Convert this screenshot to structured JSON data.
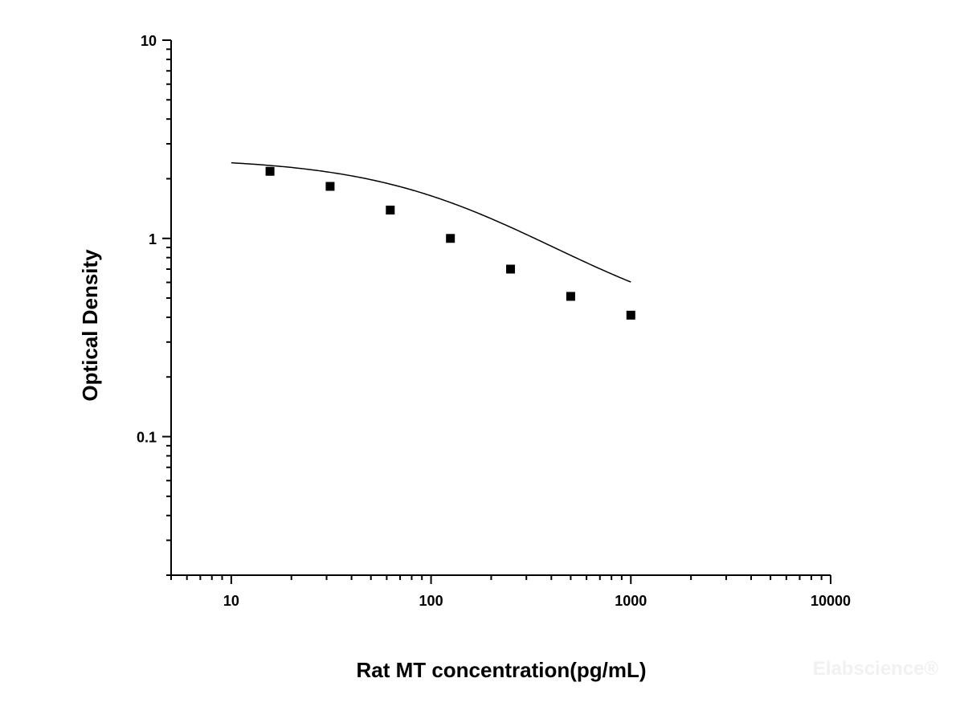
{
  "chart_data": {
    "type": "scatter",
    "xlabel": "Rat MT concentration(pg/mL)",
    "ylabel": "Optical Density",
    "x_scale": "log",
    "y_scale": "log",
    "xlim": [
      5,
      10000
    ],
    "ylim": [
      0.02,
      10
    ],
    "x_ticks": [
      10,
      100,
      1000,
      10000
    ],
    "x_tick_labels": [
      "10",
      "100",
      "1000",
      "10000"
    ],
    "y_ticks": [
      0.1,
      1,
      10
    ],
    "y_tick_labels": [
      "0.1",
      "1",
      "10"
    ],
    "grid": false,
    "legend": "none",
    "series": [
      {
        "marker": "square",
        "color": "#000000",
        "x": [
          15.63,
          31.25,
          62.5,
          125,
          250,
          500,
          1000
        ],
        "y": [
          2.18,
          1.83,
          1.39,
          1.0,
          0.7,
          0.51,
          0.41
        ]
      }
    ],
    "fit_curve": {
      "type": "4PL",
      "A1": 2.55,
      "A2": 0.32,
      "x0": 145,
      "p": 1.0,
      "x_range": [
        10,
        1000
      ],
      "color": "#000000"
    }
  },
  "watermark": "Elabscience®"
}
